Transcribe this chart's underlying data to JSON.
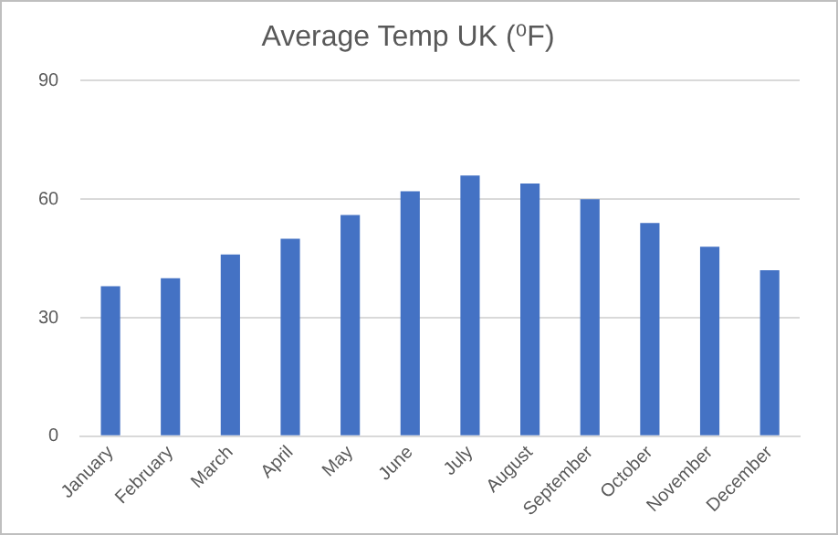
{
  "chart_data": {
    "type": "bar",
    "title": "Average Temp UK (⁰F)",
    "categories": [
      "January",
      "February",
      "March",
      "April",
      "May",
      "June",
      "July",
      "August",
      "September",
      "October",
      "November",
      "December"
    ],
    "values": [
      38,
      40,
      46,
      50,
      56,
      62,
      66,
      64,
      60,
      54,
      48,
      42
    ],
    "color": "#4472c4",
    "ylim": [
      0,
      90
    ],
    "yticks": [
      0,
      30,
      60,
      90
    ],
    "grid": "y"
  }
}
